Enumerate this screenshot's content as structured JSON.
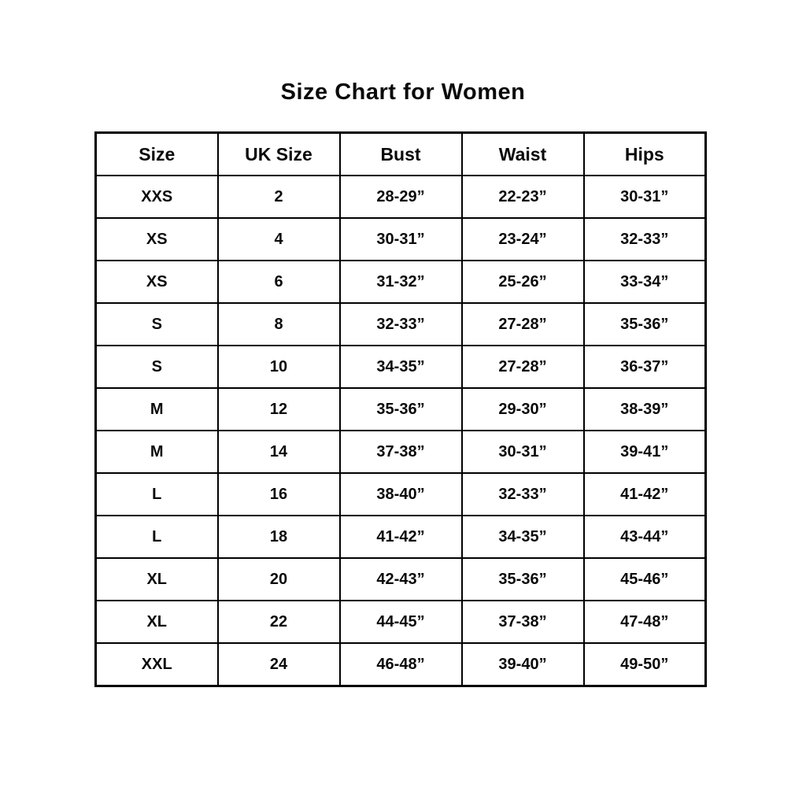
{
  "page": {
    "title": "Size Chart for Women"
  },
  "colors": {
    "background": "#ffffff",
    "border": "#000000",
    "text": "#0a0a0a"
  },
  "chart_data": {
    "type": "table",
    "title": "Size Chart for Women",
    "columns": [
      "Size",
      "UK Size",
      "Bust",
      "Waist",
      "Hips"
    ],
    "rows": [
      [
        "XXS",
        "2",
        "28-29”",
        "22-23”",
        "30-31”"
      ],
      [
        "XS",
        "4",
        "30-31”",
        "23-24”",
        "32-33”"
      ],
      [
        "XS",
        "6",
        "31-32”",
        "25-26”",
        "33-34”"
      ],
      [
        "S",
        "8",
        "32-33”",
        "27-28”",
        "35-36”"
      ],
      [
        "S",
        "10",
        "34-35”",
        "27-28”",
        "36-37”"
      ],
      [
        "M",
        "12",
        "35-36”",
        "29-30”",
        "38-39”"
      ],
      [
        "M",
        "14",
        "37-38”",
        "30-31”",
        "39-41”"
      ],
      [
        "L",
        "16",
        "38-40”",
        "32-33”",
        "41-42”"
      ],
      [
        "L",
        "18",
        "41-42”",
        "34-35”",
        "43-44”"
      ],
      [
        "XL",
        "20",
        "42-43”",
        "35-36”",
        "45-46”"
      ],
      [
        "XL",
        "22",
        "44-45”",
        "37-38”",
        "47-48”"
      ],
      [
        "XXL",
        "24",
        "46-48”",
        "39-40”",
        "49-50”"
      ]
    ]
  }
}
